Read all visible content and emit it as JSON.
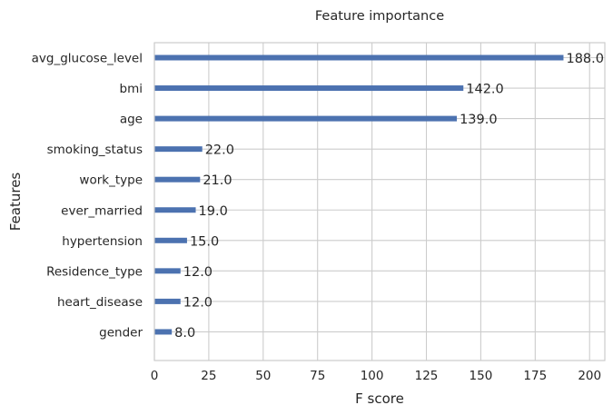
{
  "chart_data": {
    "type": "bar",
    "orientation": "horizontal",
    "title": "Feature importance",
    "xlabel": "F score",
    "ylabel": "Features",
    "xlim": [
      0,
      207
    ],
    "xticks": [
      0,
      25,
      50,
      75,
      100,
      125,
      150,
      175,
      200
    ],
    "grid": true,
    "categories": [
      "avg_glucose_level",
      "bmi",
      "age",
      "smoking_status",
      "work_type",
      "ever_married",
      "hypertension",
      "Residence_type",
      "heart_disease",
      "gender"
    ],
    "values": [
      188,
      142,
      139,
      22,
      21,
      19,
      15,
      12,
      12,
      8
    ],
    "value_labels": [
      "188.0",
      "142.0",
      "139.0",
      "22.0",
      "21.0",
      "19.0",
      "15.0",
      "12.0",
      "12.0",
      "8.0"
    ],
    "colors": {
      "bar": "#4c72b0",
      "grid": "#cccccc"
    }
  }
}
